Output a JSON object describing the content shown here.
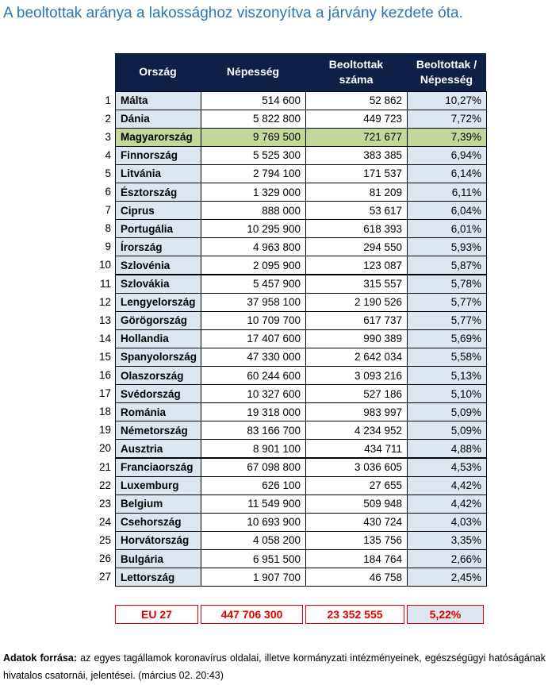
{
  "title": "A beoltottak aránya a lakossághoz viszonyítva a járvány kezdete óta.",
  "table": {
    "columns": [
      "Ország",
      "Népesség",
      "Beoltottak száma",
      "Beoltottak / Népesség"
    ],
    "rows": [
      [
        "1",
        "Málta",
        "514 600",
        "52 862",
        "10,27%"
      ],
      [
        "2",
        "Dánia",
        "5 822 800",
        "449 723",
        "7,72%"
      ],
      [
        "3",
        "Magyarország",
        "9 769 500",
        "721 677",
        "7,39%"
      ],
      [
        "4",
        "Finnország",
        "5 525 300",
        "383 385",
        "6,94%"
      ],
      [
        "5",
        "Litvánia",
        "2 794 100",
        "171 537",
        "6,14%"
      ],
      [
        "6",
        "Észtország",
        "1 329 000",
        "81 209",
        "6,11%"
      ],
      [
        "7",
        "Ciprus",
        "888 000",
        "53 617",
        "6,04%"
      ],
      [
        "8",
        "Portugália",
        "10 295 900",
        "618 393",
        "6,01%"
      ],
      [
        "9",
        "Írország",
        "4 963 800",
        "294 550",
        "5,93%"
      ],
      [
        "10",
        "Szlovénia",
        "2 095 900",
        "123 087",
        "5,87%"
      ],
      [
        "11",
        "Szlovákia",
        "5 457 900",
        "315 557",
        "5,78%"
      ],
      [
        "12",
        "Lengyelország",
        "37 958 100",
        "2 190 526",
        "5,77%"
      ],
      [
        "13",
        "Görögország",
        "10 709 700",
        "617 737",
        "5,77%"
      ],
      [
        "14",
        "Hollandia",
        "17 407 600",
        "990 389",
        "5,69%"
      ],
      [
        "15",
        "Spanyolország",
        "47 330 000",
        "2 642 034",
        "5,58%"
      ],
      [
        "16",
        "Olaszország",
        "60 244 600",
        "3 093 216",
        "5,13%"
      ],
      [
        "17",
        "Svédország",
        "10 327 600",
        "527 186",
        "5,10%"
      ],
      [
        "18",
        "Románia",
        "19 318 000",
        "983 997",
        "5,09%"
      ],
      [
        "19",
        "Németország",
        "83 166 700",
        "4 234 952",
        "5,09%"
      ],
      [
        "20",
        "Ausztria",
        "8 901 100",
        "434 711",
        "4,88%"
      ],
      [
        "21",
        "Franciaország",
        "67 098 800",
        "3 036 605",
        "4,53%"
      ],
      [
        "22",
        "Luxemburg",
        "626 100",
        "27 655",
        "4,42%"
      ],
      [
        "23",
        "Belgium",
        "11 549 900",
        "509 948",
        "4,42%"
      ],
      [
        "24",
        "Csehország",
        "10 693 900",
        "430 724",
        "4,03%"
      ],
      [
        "25",
        "Horvátország",
        "4 058 200",
        "135 756",
        "3,35%"
      ],
      [
        "26",
        "Bulgária",
        "6 951 500",
        "184 764",
        "2,66%"
      ],
      [
        "27",
        "Lettország",
        "1 907 700",
        "46 758",
        "2,45%"
      ]
    ],
    "highlighted_row": 2,
    "highlight_color": "#c4d79b",
    "total": [
      "EU 27",
      "447 706 300",
      "23 352 555",
      "5,22%"
    ]
  },
  "footer": {
    "label": "Adatok forrása:",
    "text": " az egyes tagállamok koronavírus oldalai, illetve kormányzati intézményeinek, egészségügyi hatóságának hivatalos csatornái, jelentései. (március 02. 20:43)"
  }
}
